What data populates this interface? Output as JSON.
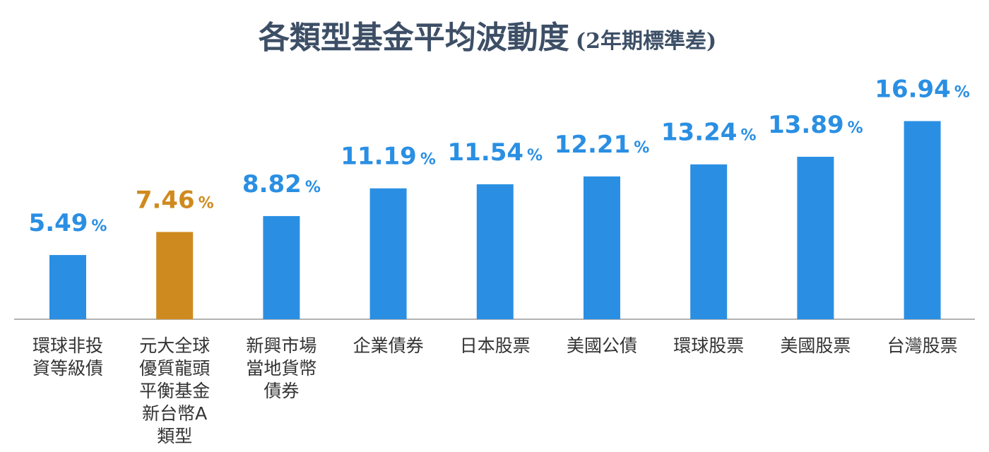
{
  "chart_data": {
    "type": "bar",
    "title": "各類型基金平均波動度",
    "subtitle": "(2年期標準差)",
    "categories": [
      [
        "環球非投",
        "資等級債"
      ],
      [
        "元大全球",
        "優質龍頭",
        "平衡基金",
        "新台幣A",
        "類型"
      ],
      [
        "新興市場",
        "當地貨幣",
        "債券"
      ],
      [
        "企業債券"
      ],
      [
        "日本股票"
      ],
      [
        "美國公債"
      ],
      [
        "環球股票"
      ],
      [
        "美國股票"
      ],
      [
        "台灣股票"
      ]
    ],
    "values": [
      5.49,
      7.46,
      8.82,
      11.19,
      11.54,
      12.21,
      13.24,
      13.89,
      16.94
    ],
    "value_labels": [
      "5.49",
      "7.46",
      "8.82",
      "11.19",
      "11.54",
      "12.21",
      "13.24",
      "13.89",
      "16.94"
    ],
    "unit": "%",
    "highlight_index": 1,
    "colors": {
      "default": "#2a8fe3",
      "highlight": "#cf8a1f",
      "axis": "#999999"
    },
    "ylim": [
      0,
      17
    ],
    "grid": false,
    "legend": "none"
  }
}
